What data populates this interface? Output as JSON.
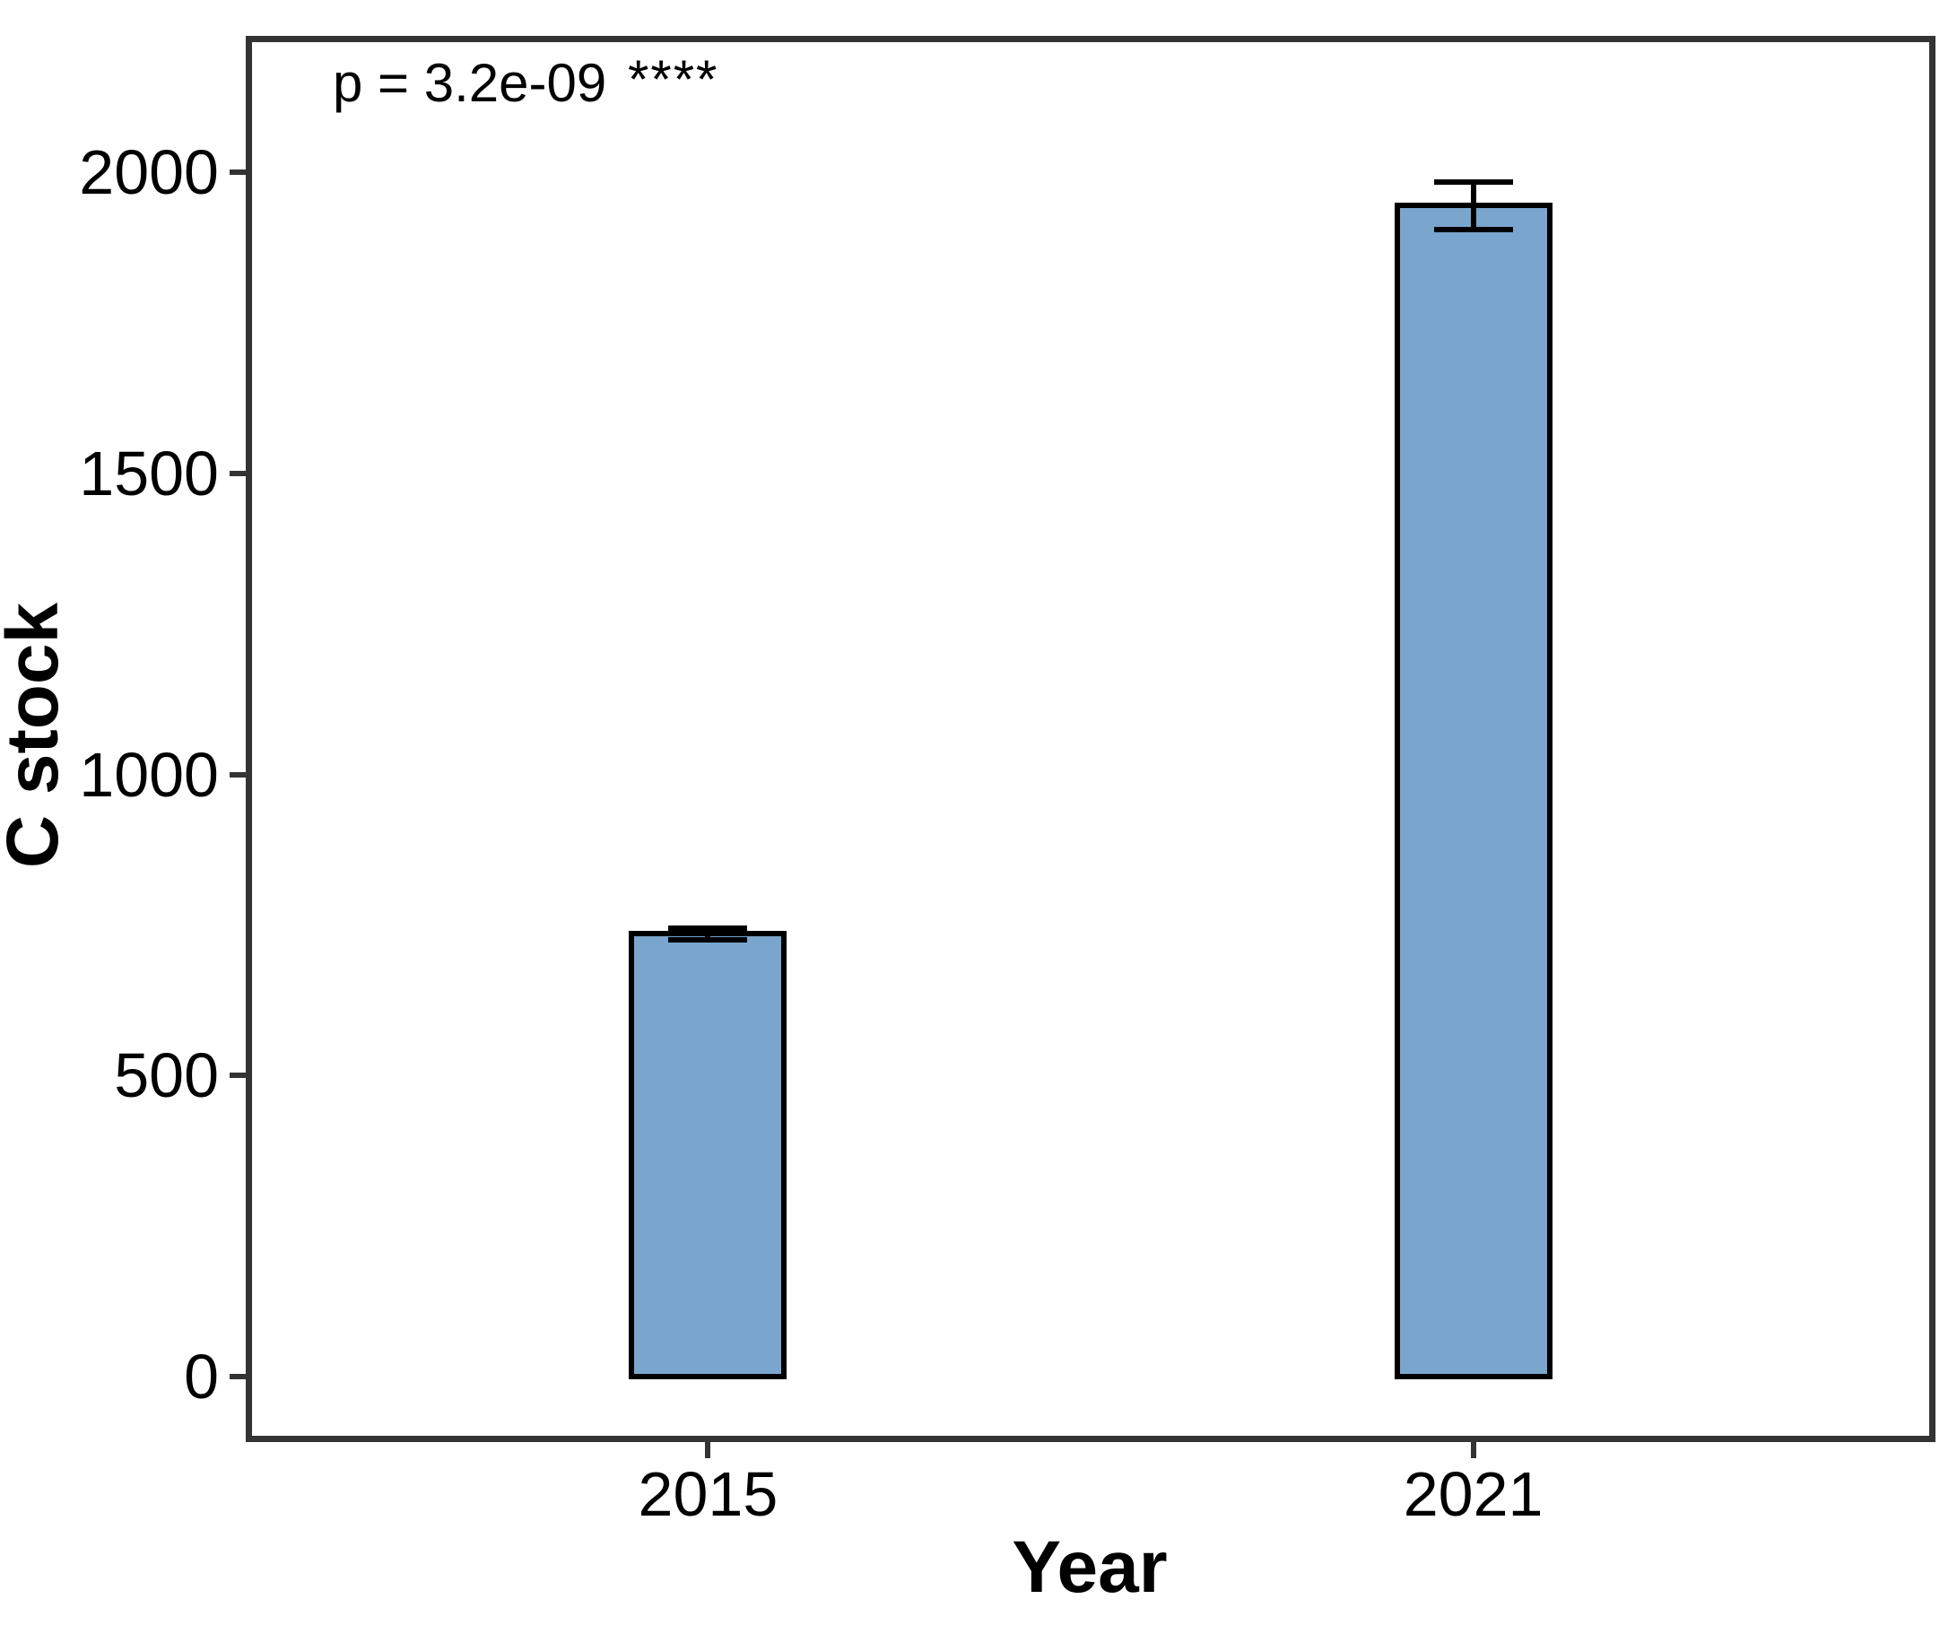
{
  "annotation": {
    "p_label": "p = 3.2e-09",
    "significance_stars": "****"
  },
  "axes": {
    "x_label": "Year",
    "y_label": "C stock"
  },
  "chart_data": {
    "type": "bar",
    "title": "",
    "xlabel": "Year",
    "ylabel": "C stock",
    "categories": [
      "2015",
      "2021"
    ],
    "values": [
      735,
      1945
    ],
    "error_upper": [
      745,
      1985
    ],
    "error_lower": [
      725,
      1905
    ],
    "error_type": "error-bar-caps",
    "yticks": [
      0,
      500,
      1000,
      1500,
      2000
    ],
    "ylim": [
      -104,
      2222
    ],
    "grid": false,
    "legend": "none",
    "annotations": [
      "p = 3.2e-09",
      "****"
    ],
    "bar_fill": "#7AA6CE",
    "bar_border": "#000000"
  },
  "colors": {
    "background": "#ffffff",
    "panel_border": "#333333",
    "tick": "#333333",
    "text": "#000000",
    "bar_fill": "#7AA6CE",
    "bar_border": "#000000"
  }
}
